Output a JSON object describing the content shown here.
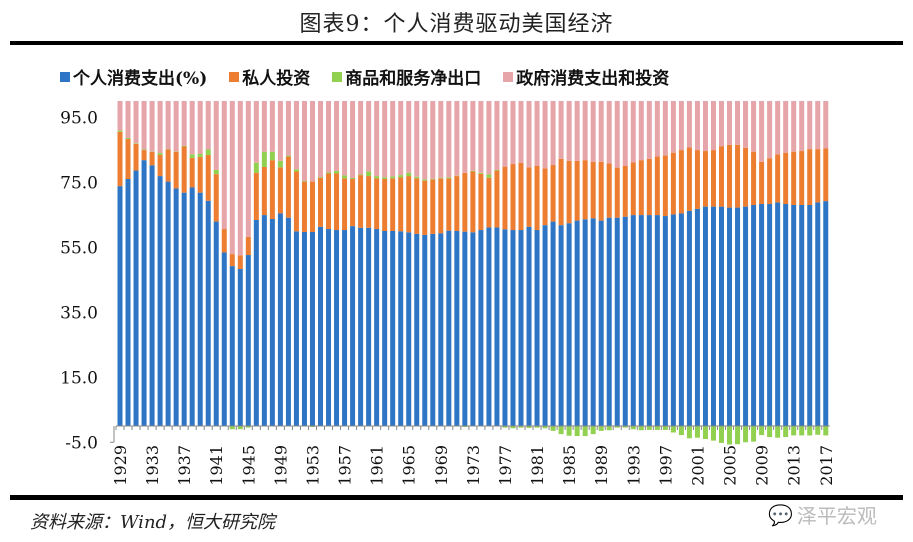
{
  "title": "图表9：个人消费驱动美国经济",
  "source": "资料来源：Wind，恒大研究院",
  "watermark": "泽平宏观",
  "chart_data": {
    "type": "bar",
    "stacked": true,
    "title": "图表9：个人消费驱动美国经济",
    "xlabel": "",
    "ylabel": "",
    "ylim": [
      -5,
      100
    ],
    "yticks": [
      -5.0,
      15.0,
      35.0,
      55.0,
      75.0,
      95.0
    ],
    "ytick_labels": [
      "-5.0",
      "15.0",
      "35.0",
      "55.0",
      "75.0",
      "95.0"
    ],
    "xtick_labels": [
      "1929",
      "1933",
      "1937",
      "1941",
      "1945",
      "1949",
      "1953",
      "1957",
      "1961",
      "1965",
      "1969",
      "1973",
      "1977",
      "1981",
      "1985",
      "1989",
      "1993",
      "1997",
      "2001",
      "2005",
      "2009",
      "2013",
      "2017"
    ],
    "grid": false,
    "legend_position": "top",
    "x_start": 1929,
    "x_end": 2017,
    "series": [
      {
        "name": "个人消费支出(%)",
        "color": "#2e75c6",
        "values": [
          73.8,
          76.0,
          78.6,
          81.8,
          80.2,
          76.9,
          75.2,
          73.1,
          71.8,
          73.4,
          71.8,
          69.3,
          62.9,
          53.4,
          49.2,
          48.3,
          52.6,
          63.4,
          64.9,
          63.7,
          65.4,
          64.1,
          59.9,
          59.7,
          59.7,
          61.3,
          60.6,
          60.3,
          60.3,
          61.5,
          61.0,
          61.0,
          60.6,
          60.0,
          60.0,
          59.9,
          59.6,
          59.1,
          58.8,
          59.1,
          59.3,
          60.1,
          60.0,
          59.8,
          59.6,
          60.3,
          61.1,
          61.1,
          60.5,
          60.3,
          60.3,
          61.3,
          60.3,
          61.8,
          62.9,
          61.8,
          62.4,
          63.2,
          63.6,
          63.9,
          63.2,
          64.1,
          64.1,
          64.4,
          64.9,
          64.9,
          64.9,
          64.9,
          64.6,
          65.1,
          65.4,
          66.2,
          66.8,
          67.5,
          67.5,
          67.5,
          67.2,
          67.2,
          67.5,
          68.0,
          68.3,
          68.3,
          68.8,
          68.3,
          68.0,
          68.0,
          68.0,
          68.8,
          69.2
        ]
      },
      {
        "name": "私人投资",
        "color": "#ed7d31",
        "values": [
          16.7,
          12.3,
          8.2,
          3.1,
          4.1,
          6.5,
          9.9,
          11.3,
          14.2,
          9.1,
          11.0,
          14.1,
          14.6,
          7.2,
          3.7,
          4.2,
          5.6,
          14.5,
          14.8,
          18.1,
          14.2,
          18.8,
          18.4,
          15.5,
          15.5,
          15.1,
          17.1,
          17.4,
          15.9,
          14.5,
          16.2,
          15.9,
          15.6,
          16.0,
          16.2,
          16.6,
          17.3,
          17.1,
          16.7,
          16.8,
          16.9,
          16.1,
          16.9,
          18.1,
          18.7,
          17.3,
          15.3,
          17.5,
          19.3,
          20.3,
          20.7,
          18.3,
          19.7,
          17.5,
          17.4,
          20.4,
          19.2,
          18.4,
          18.2,
          17.4,
          18.1,
          16.7,
          15.4,
          15.6,
          16.2,
          16.9,
          17.3,
          18.0,
          18.6,
          19.0,
          19.5,
          19.5,
          18.1,
          17.1,
          17.4,
          18.5,
          19.3,
          19.3,
          18.1,
          16.4,
          13.0,
          14.1,
          14.8,
          15.8,
          16.4,
          16.6,
          17.2,
          16.4,
          16.2
        ]
      },
      {
        "name": "商品和服务净出口",
        "color": "#92d050",
        "values": [
          0.4,
          0.3,
          0.2,
          0.2,
          0.1,
          0.6,
          0.1,
          0.1,
          0.2,
          1.1,
          0.9,
          1.7,
          1.3,
          0,
          -1.0,
          -1.0,
          -0.5,
          3.1,
          4.7,
          2.6,
          2.0,
          0.3,
          0.7,
          0.2,
          -0.3,
          0.2,
          0.3,
          0.8,
          0.9,
          0.3,
          0.2,
          1.4,
          0.7,
          0.5,
          0.6,
          0.7,
          1.0,
          0.5,
          0.4,
          0.2,
          0.2,
          0.3,
          0.1,
          -0.3,
          0.2,
          0.3,
          1.0,
          0.2,
          -0.5,
          -0.7,
          -0.5,
          -0.6,
          -0.5,
          -0.7,
          -1.5,
          -2.5,
          -3.0,
          -3.1,
          -3.1,
          -2.5,
          -1.5,
          -1.3,
          -0.5,
          -0.5,
          -1.0,
          -1.3,
          -1.2,
          -1.2,
          -1.2,
          -2.0,
          -2.8,
          -3.8,
          -3.6,
          -4.0,
          -4.5,
          -5.2,
          -5.7,
          -5.6,
          -5.0,
          -4.8,
          -2.8,
          -3.4,
          -3.6,
          -3.4,
          -2.9,
          -2.9,
          -2.9,
          -2.7,
          -2.9
        ]
      },
      {
        "name": "政府消费支出和投资",
        "color": "#e6a5a8",
        "values": [
          9.1,
          11.4,
          13.0,
          14.9,
          15.6,
          16.0,
          14.8,
          15.5,
          13.8,
          16.4,
          16.3,
          14.9,
          21.2,
          39.4,
          47.1,
          47.5,
          41.8,
          19.0,
          15.6,
          15.6,
          18.4,
          16.8,
          21.0,
          24.6,
          24.8,
          23.4,
          22.0,
          21.5,
          22.9,
          23.7,
          22.6,
          21.7,
          23.1,
          23.5,
          23.2,
          22.8,
          22.1,
          23.3,
          24.1,
          23.9,
          23.6,
          23.5,
          23.0,
          22.1,
          21.5,
          22.1,
          22.6,
          21.2,
          20.2,
          19.4,
          19.0,
          20.4,
          20.0,
          20.7,
          19.7,
          17.8,
          18.4,
          18.4,
          18.2,
          18.7,
          18.7,
          19.2,
          20.5,
          20.0,
          18.9,
          18.2,
          17.8,
          17.1,
          16.8,
          15.9,
          15.1,
          14.3,
          15.1,
          15.4,
          15.1,
          14.0,
          13.5,
          13.5,
          14.4,
          15.6,
          18.7,
          17.6,
          16.4,
          15.9,
          15.6,
          15.4,
          14.8,
          14.8,
          14.6
        ]
      }
    ]
  }
}
